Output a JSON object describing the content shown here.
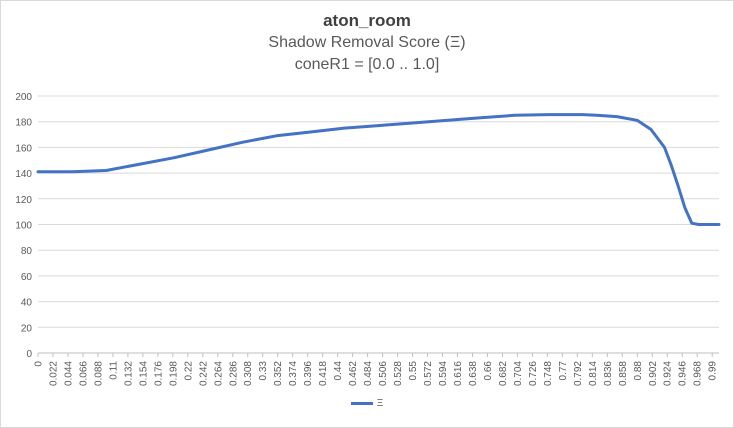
{
  "chart_data": {
    "type": "line",
    "title": "aton_room",
    "subtitle": "Shadow Removal Score (Ξ)",
    "subtitle2": "coneR1 = [0.0 .. 1.0]",
    "xlabel": "",
    "ylabel": "",
    "ylim": [
      0,
      200
    ],
    "yticks": [
      0,
      20,
      40,
      60,
      80,
      100,
      120,
      140,
      160,
      180,
      200
    ],
    "xlim": [
      0,
      1.0
    ],
    "xticks": [
      "0",
      "0.022",
      "0.044",
      "0.066",
      "0.088",
      "0.11",
      "0.132",
      "0.154",
      "0.176",
      "0.198",
      "0.22",
      "0.242",
      "0.264",
      "0.286",
      "0.308",
      "0.33",
      "0.352",
      "0.374",
      "0.396",
      "0.418",
      "0.44",
      "0.462",
      "0.484",
      "0.506",
      "0.528",
      "0.55",
      "0.572",
      "0.594",
      "0.616",
      "0.638",
      "0.66",
      "0.682",
      "0.704",
      "0.726",
      "0.748",
      "0.77",
      "0.792",
      "0.814",
      "0.836",
      "0.858",
      "0.88",
      "0.902",
      "0.924",
      "0.946",
      "0.968",
      "0.99"
    ],
    "grid": true,
    "legend_position": "bottom",
    "series": [
      {
        "name": "Ξ",
        "color": "#4472c4",
        "x": [
          0,
          0.05,
          0.1,
          0.15,
          0.2,
          0.25,
          0.3,
          0.35,
          0.4,
          0.45,
          0.5,
          0.55,
          0.6,
          0.65,
          0.7,
          0.75,
          0.8,
          0.82,
          0.85,
          0.88,
          0.9,
          0.92,
          0.93,
          0.94,
          0.95,
          0.96,
          0.97,
          0.98,
          1.0
        ],
        "y": [
          141,
          141,
          142,
          147,
          152,
          158,
          164,
          169,
          172,
          175,
          177,
          179,
          181,
          183,
          185,
          185.5,
          185.5,
          185,
          184,
          181,
          174,
          160,
          146,
          130,
          113,
          101,
          100,
          100,
          100
        ]
      }
    ]
  }
}
